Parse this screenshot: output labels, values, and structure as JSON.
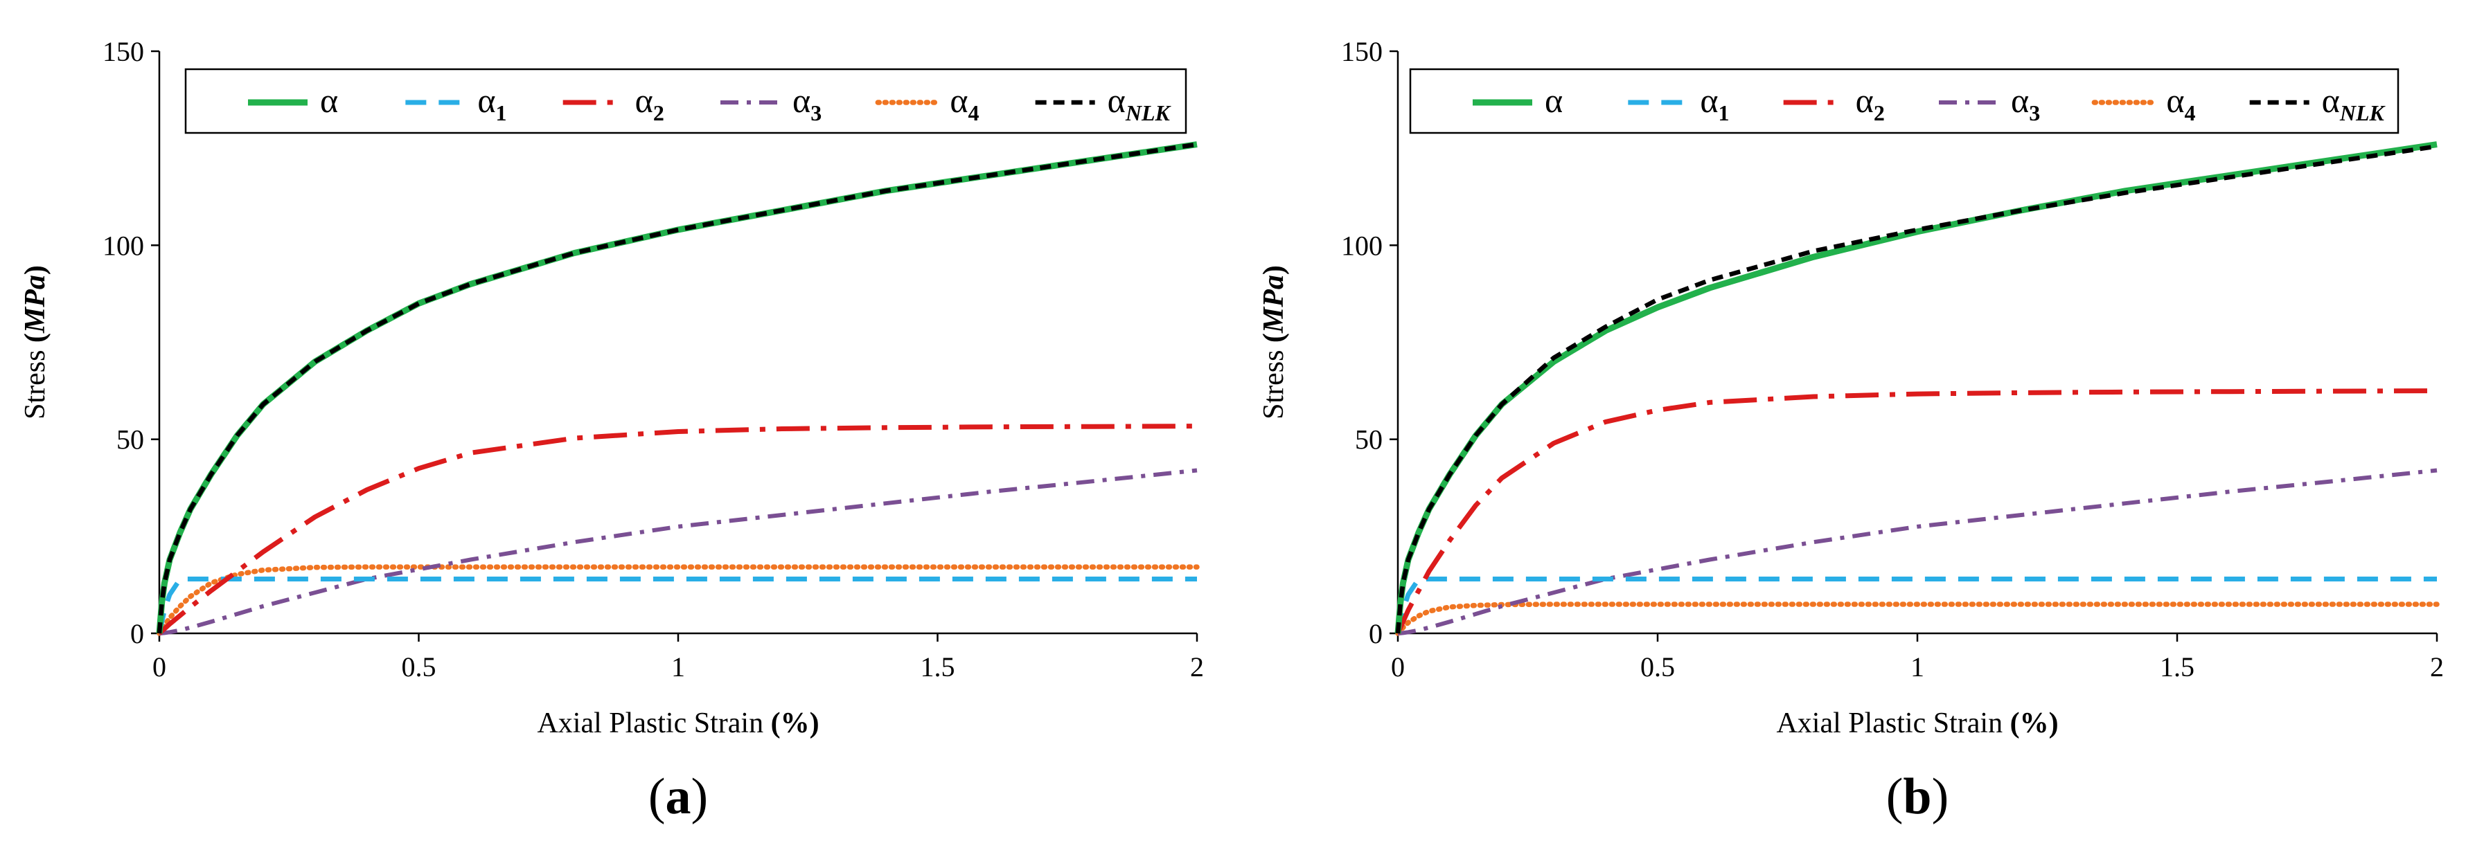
{
  "colors": {
    "alpha": "#22b14c",
    "alpha_1": "#29aee6",
    "alpha_2": "#dc1c1c",
    "alpha_3": "#7a4f93",
    "alpha_4": "#f07522",
    "alpha_NLK": "#000000"
  },
  "chart_data": [
    {
      "type": "line",
      "panel_label": "(a)",
      "xlabel": "Axial Plastic Strain (%)",
      "ylabel": "Stress (MPa)",
      "xlim": [
        0,
        2
      ],
      "ylim": [
        0,
        150
      ],
      "xticks": [
        "0",
        "0.5",
        "1",
        "1.5",
        "2"
      ],
      "yticks": [
        "0",
        "50",
        "100",
        "150"
      ],
      "legend": [
        {
          "base": "α",
          "sub": ""
        },
        {
          "base": "α",
          "sub": "1"
        },
        {
          "base": "α",
          "sub": "2"
        },
        {
          "base": "α",
          "sub": "3"
        },
        {
          "base": "α",
          "sub": "4"
        },
        {
          "base": "α",
          "sub": "NLK"
        }
      ],
      "x": [
        0,
        0.005,
        0.01,
        0.02,
        0.04,
        0.06,
        0.1,
        0.15,
        0.2,
        0.3,
        0.4,
        0.5,
        0.6,
        0.8,
        1.0,
        1.2,
        1.4,
        1.6,
        1.8,
        2.0
      ],
      "series": [
        {
          "name": "α",
          "key": "alpha",
          "values": [
            0,
            8,
            13,
            19,
            26,
            32,
            41,
            51,
            59,
            70,
            78,
            85,
            90,
            98,
            104,
            109,
            114,
            118,
            122,
            126
          ]
        },
        {
          "name": "α1",
          "key": "alpha_1",
          "values": [
            0,
            3,
            6,
            10,
            14,
            14,
            14,
            14,
            14,
            14,
            14,
            14,
            14,
            14,
            14,
            14,
            14,
            14,
            14,
            14
          ]
        },
        {
          "name": "α2",
          "key": "alpha_2",
          "values": [
            0,
            0.6,
            1.2,
            2.4,
            4.6,
            6.8,
            11,
            16,
            21,
            30,
            37,
            42.5,
            46.5,
            50.3,
            52,
            52.7,
            53,
            53.2,
            53.3,
            53.4
          ]
        },
        {
          "name": "α3",
          "key": "alpha_3",
          "values": [
            0,
            0.05,
            0.1,
            0.3,
            0.8,
            1.5,
            3,
            5,
            7,
            10.5,
            14,
            16.5,
            19,
            23.5,
            27.5,
            30.5,
            33.5,
            36.5,
            39.2,
            42
          ]
        },
        {
          "name": "α4",
          "key": "alpha_4",
          "values": [
            0,
            1,
            2,
            4,
            7,
            9.5,
            13,
            15.2,
            16.3,
            17,
            17.1,
            17.1,
            17.1,
            17.1,
            17.1,
            17.1,
            17.1,
            17.1,
            17.1,
            17.1
          ]
        },
        {
          "name": "αNLK",
          "key": "alpha_NLK",
          "values": [
            0,
            8,
            13,
            19,
            26,
            32,
            41,
            51,
            59,
            70,
            78,
            85,
            90,
            98,
            104,
            109,
            114,
            118,
            122,
            126
          ]
        }
      ]
    },
    {
      "type": "line",
      "panel_label": "(b)",
      "xlabel": "Axial Plastic Strain (%)",
      "ylabel": "Stress (MPa)",
      "xlim": [
        0,
        2
      ],
      "ylim": [
        0,
        150
      ],
      "xticks": [
        "0",
        "0.5",
        "1",
        "1.5",
        "2"
      ],
      "yticks": [
        "0",
        "50",
        "100",
        "150"
      ],
      "legend": [
        {
          "base": "α",
          "sub": ""
        },
        {
          "base": "α",
          "sub": "1"
        },
        {
          "base": "α",
          "sub": "2"
        },
        {
          "base": "α",
          "sub": "3"
        },
        {
          "base": "α",
          "sub": "4"
        },
        {
          "base": "α",
          "sub": "NLK"
        }
      ],
      "x": [
        0,
        0.005,
        0.01,
        0.02,
        0.04,
        0.06,
        0.1,
        0.15,
        0.2,
        0.3,
        0.4,
        0.5,
        0.6,
        0.8,
        1.0,
        1.2,
        1.4,
        1.6,
        1.8,
        2.0
      ],
      "series": [
        {
          "name": "α",
          "key": "alpha",
          "values": [
            0,
            8,
            13,
            19,
            26,
            32,
            41,
            51,
            59,
            70,
            78,
            84,
            89,
            97,
            103.5,
            109,
            114,
            118,
            122,
            126
          ]
        },
        {
          "name": "α1",
          "key": "alpha_1",
          "values": [
            0,
            3,
            6,
            10,
            14,
            14,
            14,
            14,
            14,
            14,
            14,
            14,
            14,
            14,
            14,
            14,
            14,
            14,
            14,
            14
          ]
        },
        {
          "name": "α2",
          "key": "alpha_2",
          "values": [
            0,
            1.5,
            3,
            6,
            11,
            16,
            24,
            33,
            40,
            49,
            54.5,
            57.5,
            59.5,
            61,
            61.7,
            62,
            62.2,
            62.3,
            62.4,
            62.5
          ]
        },
        {
          "name": "α3",
          "key": "alpha_3",
          "values": [
            0,
            0.05,
            0.1,
            0.3,
            0.8,
            1.5,
            3,
            5,
            7,
            10.5,
            14,
            16.5,
            19,
            23.5,
            27.5,
            30.5,
            33.5,
            36.5,
            39.2,
            42
          ]
        },
        {
          "name": "α4",
          "key": "alpha_4",
          "values": [
            0,
            0.8,
            1.5,
            2.8,
            4.5,
            5.7,
            6.8,
            7.2,
            7.4,
            7.5,
            7.5,
            7.5,
            7.5,
            7.5,
            7.5,
            7.5,
            7.5,
            7.5,
            7.5,
            7.5
          ]
        },
        {
          "name": "αNLK",
          "key": "alpha_NLK",
          "values": [
            0,
            8,
            13,
            19,
            26,
            32,
            41,
            51,
            59,
            71,
            79,
            86,
            91,
            98.5,
            104,
            109,
            113.5,
            117.5,
            121.5,
            125.5
          ]
        }
      ]
    }
  ]
}
